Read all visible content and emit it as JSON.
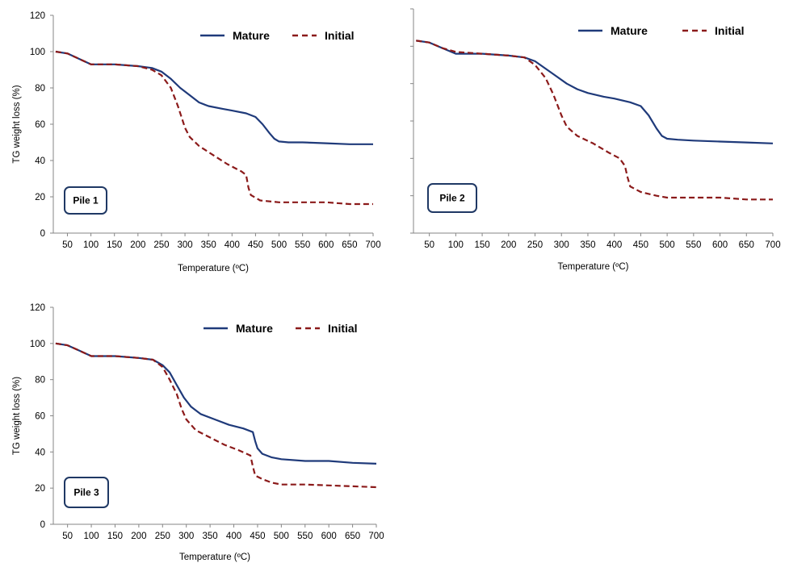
{
  "chart_data": [
    {
      "type": "line",
      "label": "Pile 1",
      "xlabel": "Temperature (ºC)",
      "ylabel": "TG weight loss (%)",
      "x_ticks": [
        50,
        100,
        150,
        200,
        250,
        300,
        350,
        400,
        450,
        500,
        550,
        600,
        650,
        700
      ],
      "y_ticks": [
        0,
        20,
        40,
        60,
        80,
        100,
        120
      ],
      "show_y_tick_labels": true,
      "xlim": [
        20,
        700
      ],
      "ylim": [
        0,
        120
      ],
      "legend_position": "top-right",
      "series": [
        {
          "name": "Mature",
          "color": "#1F3A7A",
          "style": "solid",
          "x": [
            25,
            50,
            75,
            100,
            150,
            200,
            230,
            250,
            270,
            290,
            310,
            330,
            350,
            380,
            400,
            430,
            450,
            465,
            480,
            490,
            500,
            520,
            550,
            600,
            650,
            700
          ],
          "y": [
            100,
            99,
            96,
            93,
            93,
            92,
            91,
            89,
            85,
            80,
            76,
            72,
            70,
            68.5,
            67.5,
            66,
            64,
            60,
            55,
            52,
            50.5,
            50,
            50,
            49.5,
            49,
            49
          ]
        },
        {
          "name": "Initial",
          "color": "#8B1A1A",
          "style": "dashed",
          "x": [
            25,
            50,
            75,
            100,
            150,
            200,
            230,
            250,
            270,
            285,
            300,
            310,
            330,
            360,
            390,
            420,
            430,
            435,
            440,
            460,
            500,
            550,
            600,
            650,
            700
          ],
          "y": [
            100,
            99,
            96,
            93,
            93,
            92,
            90,
            87,
            80,
            70,
            58,
            53,
            48,
            43,
            38,
            34,
            32,
            25,
            21,
            18,
            17,
            17,
            17,
            16,
            16
          ]
        }
      ]
    },
    {
      "type": "line",
      "label": "Pile 2",
      "xlabel": "Temperature (ºC)",
      "ylabel": "",
      "x_ticks": [
        50,
        100,
        150,
        200,
        250,
        300,
        350,
        400,
        450,
        500,
        550,
        600,
        650,
        700
      ],
      "y_ticks": [
        0,
        20,
        40,
        60,
        80,
        100,
        120
      ],
      "show_y_tick_labels": false,
      "xlim": [
        20,
        700
      ],
      "ylim": [
        0,
        120
      ],
      "legend_position": "top-right",
      "series": [
        {
          "name": "Mature",
          "color": "#1F3A7A",
          "style": "solid",
          "x": [
            25,
            50,
            75,
            100,
            150,
            200,
            230,
            250,
            270,
            290,
            310,
            330,
            350,
            380,
            400,
            430,
            450,
            465,
            480,
            490,
            500,
            520,
            550,
            600,
            650,
            700
          ],
          "y": [
            103,
            102,
            99,
            96,
            96,
            95,
            94,
            92,
            88,
            84,
            80,
            77,
            75,
            73,
            72,
            70,
            68,
            63,
            56,
            52,
            50.5,
            50,
            49.5,
            49,
            48.5,
            48
          ]
        },
        {
          "name": "Initial",
          "color": "#8B1A1A",
          "style": "dashed",
          "x": [
            25,
            50,
            75,
            100,
            150,
            200,
            230,
            250,
            270,
            285,
            300,
            310,
            330,
            360,
            390,
            410,
            420,
            425,
            430,
            450,
            480,
            500,
            550,
            600,
            650,
            700
          ],
          "y": [
            103,
            102,
            99,
            97,
            96,
            95,
            94,
            90,
            83,
            74,
            63,
            57,
            52,
            48,
            43,
            40,
            36,
            30,
            25,
            22,
            20,
            19,
            19,
            19,
            18,
            18
          ]
        }
      ]
    },
    {
      "type": "line",
      "label": "Pile 3",
      "xlabel": "Temperature (ºC)",
      "ylabel": "TG weight loss (%)",
      "x_ticks": [
        50,
        100,
        150,
        200,
        250,
        300,
        350,
        400,
        450,
        500,
        550,
        600,
        650,
        700
      ],
      "y_ticks": [
        0,
        20,
        40,
        60,
        80,
        100,
        120
      ],
      "show_y_tick_labels": true,
      "xlim": [
        20,
        700
      ],
      "ylim": [
        0,
        120
      ],
      "legend_position": "top-right",
      "series": [
        {
          "name": "Mature",
          "color": "#1F3A7A",
          "style": "solid",
          "x": [
            25,
            50,
            75,
            100,
            150,
            200,
            230,
            250,
            265,
            280,
            295,
            310,
            330,
            360,
            390,
            420,
            440,
            445,
            450,
            460,
            480,
            500,
            550,
            600,
            650,
            700
          ],
          "y": [
            100,
            99,
            96,
            93,
            93,
            92,
            91,
            88,
            84,
            77,
            70,
            65,
            61,
            58,
            55,
            53,
            51,
            46,
            42,
            39,
            37,
            36,
            35,
            35,
            34,
            33.5
          ]
        },
        {
          "name": "Initial",
          "color": "#8B1A1A",
          "style": "dashed",
          "x": [
            25,
            50,
            75,
            100,
            150,
            200,
            230,
            250,
            265,
            280,
            290,
            300,
            320,
            350,
            380,
            410,
            435,
            440,
            445,
            460,
            480,
            500,
            550,
            600,
            650,
            700
          ],
          "y": [
            100,
            99,
            96,
            93,
            93,
            92,
            91,
            87,
            80,
            72,
            64,
            58,
            52,
            48,
            44,
            41,
            38,
            32,
            27,
            25,
            23,
            22,
            22,
            21.5,
            21,
            20.5
          ]
        }
      ]
    }
  ]
}
